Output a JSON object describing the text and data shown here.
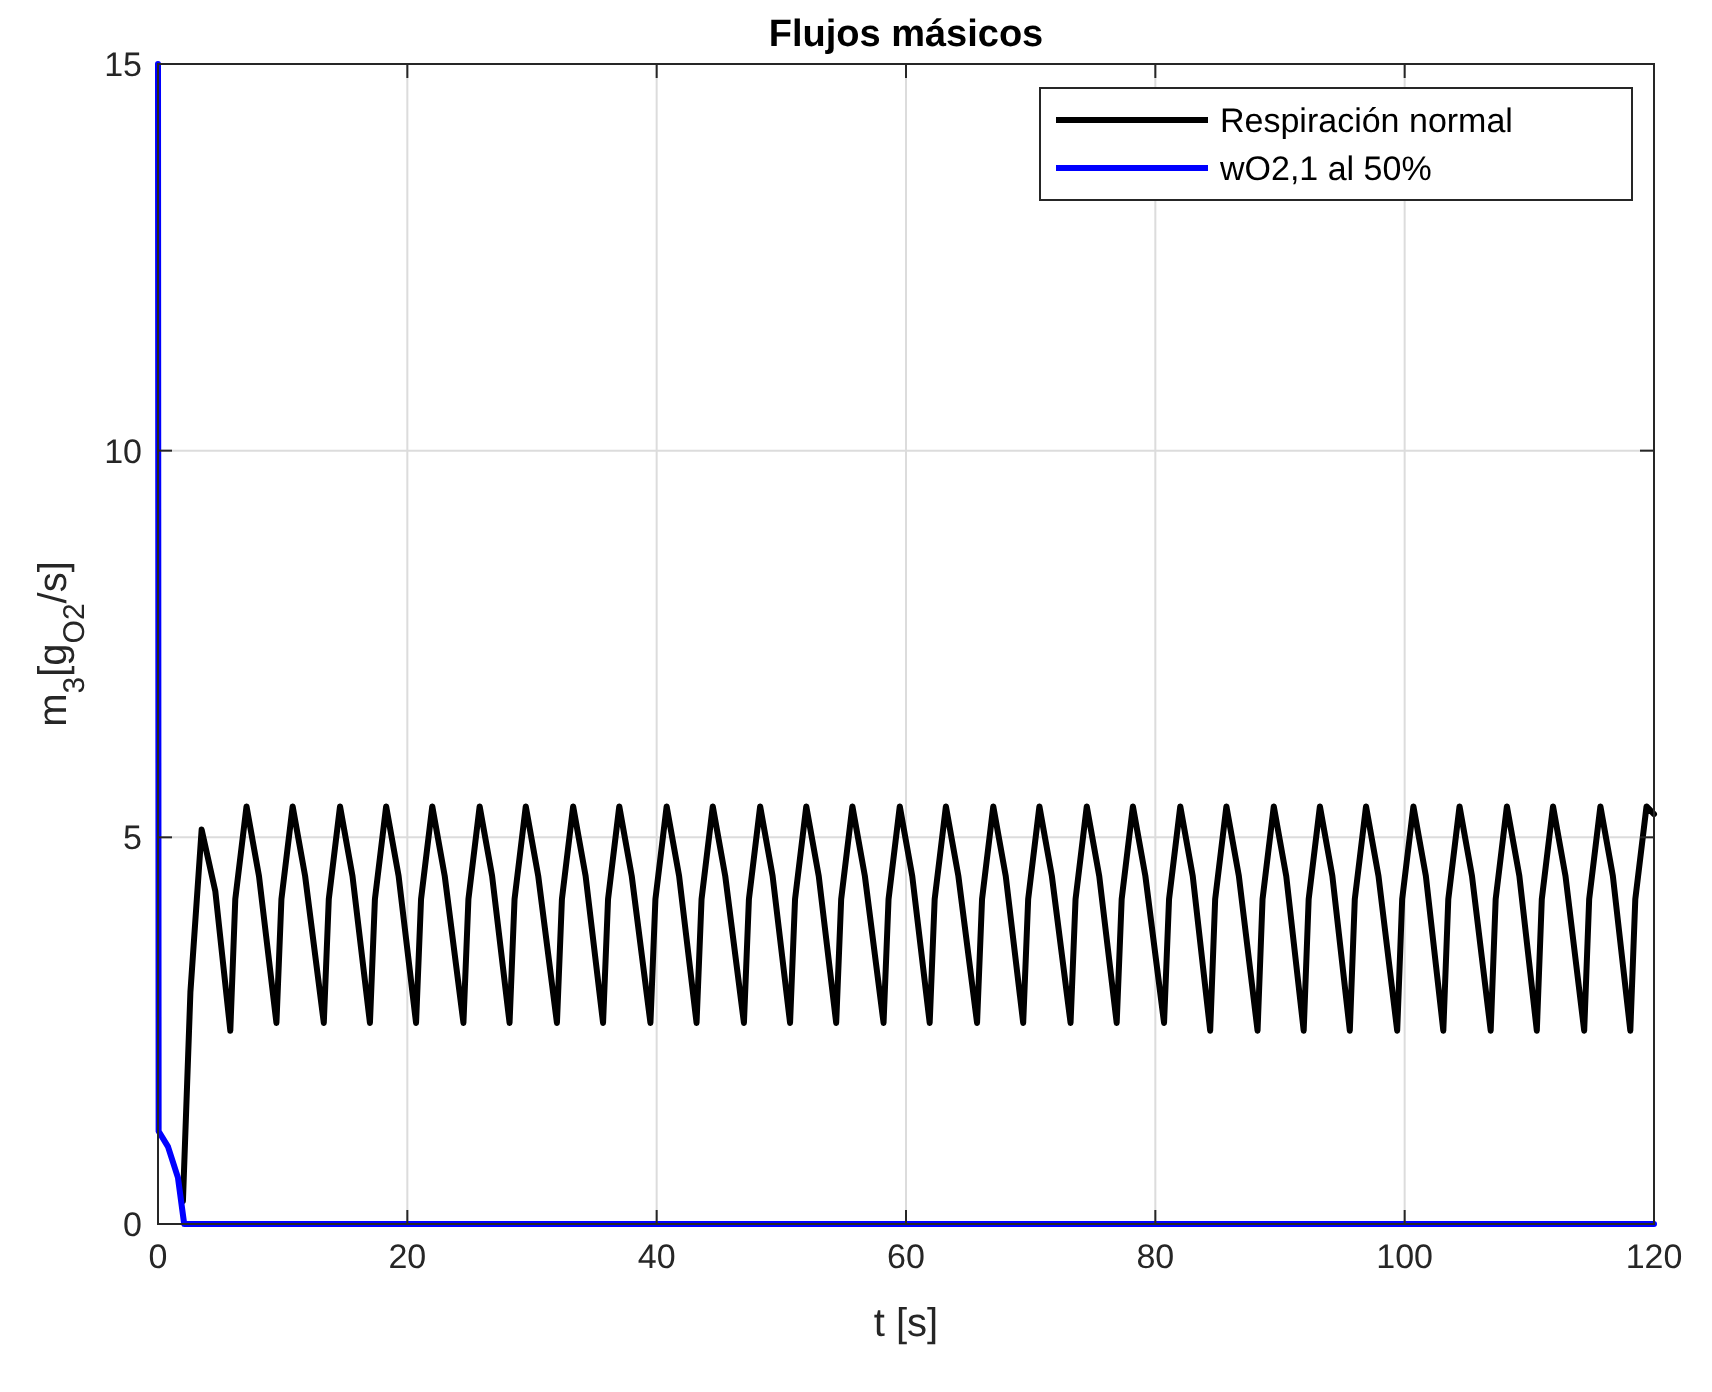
{
  "chart_data": {
    "type": "line",
    "title": "Flujos másicos",
    "xlabel": "t [s]",
    "ylabel": "m$_{3}$[g$_{O2}$/s]",
    "xlim": [
      0,
      120
    ],
    "xticks": [
      0,
      20,
      40,
      60,
      80,
      100,
      120
    ],
    "ylim": [
      0,
      15
    ],
    "yticks": [
      0,
      5,
      10,
      15
    ],
    "grid": true,
    "legend": "top right",
    "line_style": "solid",
    "marker": "none",
    "series": [
      {
        "name": "Respiración normal",
        "color": "#000000",
        "x": [
          2.0,
          2.6,
          3.5,
          4.6,
          5.8,
          6.2,
          7.1,
          8.1,
          9.5,
          9.9,
          10.8,
          11.8,
          13.3,
          13.7,
          14.6,
          15.6,
          17.0,
          17.4,
          18.3,
          19.3,
          20.7,
          21.1,
          22.0,
          23.0,
          24.5,
          24.9,
          25.8,
          26.8,
          28.2,
          28.6,
          29.5,
          30.5,
          32.0,
          32.4,
          33.3,
          34.3,
          35.7,
          36.1,
          37.0,
          38.0,
          39.5,
          39.9,
          40.8,
          41.8,
          43.2,
          43.6,
          44.5,
          45.5,
          47.0,
          47.4,
          48.3,
          49.3,
          50.7,
          51.1,
          52.0,
          53.0,
          54.4,
          54.8,
          55.7,
          56.7,
          58.2,
          58.6,
          59.5,
          60.5,
          61.9,
          62.3,
          63.2,
          64.2,
          65.7,
          66.1,
          67.0,
          68.0,
          69.4,
          69.8,
          70.7,
          71.7,
          73.2,
          73.6,
          74.5,
          75.5,
          76.9,
          77.3,
          78.2,
          79.2,
          80.7,
          81.1,
          82.0,
          83.0,
          84.4,
          84.8,
          85.7,
          86.7,
          88.2,
          88.6,
          89.5,
          90.5,
          91.9,
          92.3,
          93.2,
          94.2,
          95.6,
          96.0,
          96.9,
          97.9,
          99.4,
          99.8,
          100.7,
          101.7,
          103.1,
          103.5,
          104.4,
          105.4,
          106.9,
          107.3,
          108.2,
          109.2,
          110.6,
          111.0,
          111.9,
          112.9,
          114.4,
          114.8,
          115.7,
          116.7,
          118.1,
          118.5,
          119.4,
          120
        ],
        "values": [
          0.3,
          3.0,
          5.1,
          4.3,
          2.5,
          4.2,
          5.4,
          4.5,
          2.6,
          4.2,
          5.4,
          4.5,
          2.6,
          4.2,
          5.4,
          4.5,
          2.6,
          4.2,
          5.4,
          4.5,
          2.6,
          4.2,
          5.4,
          4.5,
          2.6,
          4.2,
          5.4,
          4.5,
          2.6,
          4.2,
          5.4,
          4.5,
          2.6,
          4.2,
          5.4,
          4.5,
          2.6,
          4.2,
          5.4,
          4.5,
          2.6,
          4.2,
          5.4,
          4.5,
          2.6,
          4.2,
          5.4,
          4.5,
          2.6,
          4.2,
          5.4,
          4.5,
          2.6,
          4.2,
          5.4,
          4.5,
          2.6,
          4.2,
          5.4,
          4.5,
          2.6,
          4.2,
          5.4,
          4.5,
          2.6,
          4.2,
          5.4,
          4.5,
          2.6,
          4.2,
          5.4,
          4.5,
          2.6,
          4.2,
          5.4,
          4.5,
          2.6,
          4.2,
          5.4,
          4.5,
          2.6,
          4.2,
          5.4,
          4.5,
          2.6,
          4.2,
          5.4,
          4.5,
          2.5,
          4.2,
          5.4,
          4.5,
          2.5,
          4.2,
          5.4,
          4.5,
          2.5,
          4.2,
          5.4,
          4.5,
          2.5,
          4.2,
          5.4,
          4.5,
          2.5,
          4.2,
          5.4,
          4.5,
          2.5,
          4.2,
          5.4,
          4.5,
          2.5,
          4.2,
          5.4,
          4.5,
          2.5,
          4.2,
          5.4,
          4.5,
          2.5,
          4.2,
          5.4,
          4.5,
          2.5,
          4.2,
          5.4,
          5.3
        ]
      },
      {
        "name": "wO2,1 al 50%",
        "color": "#0000ff",
        "x": [
          0,
          0.05,
          0.8,
          1.6,
          2.1,
          120
        ],
        "values": [
          15,
          1.2,
          1.0,
          0.6,
          0,
          0
        ]
      }
    ]
  }
}
